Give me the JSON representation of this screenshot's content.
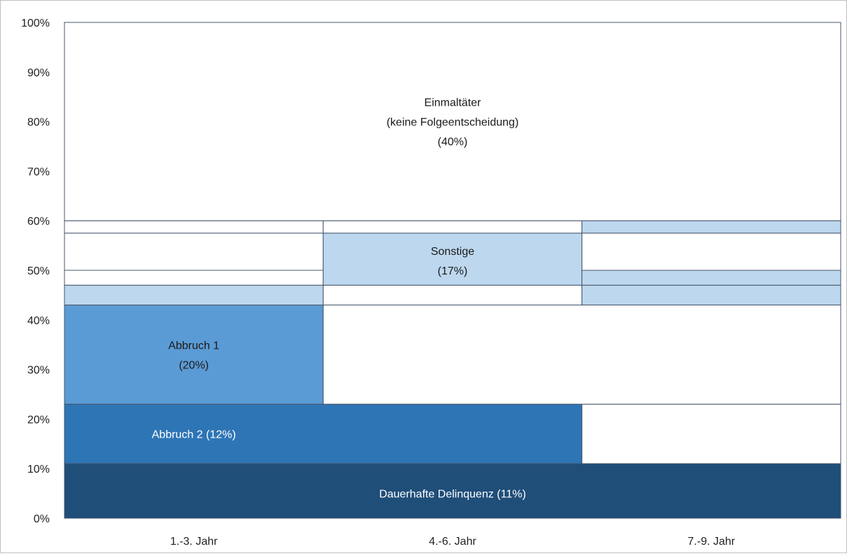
{
  "chart_data": {
    "type": "bar",
    "layout": "stacked-transition",
    "categories": [
      "1.-3. Jahr",
      "4.-6. Jahr",
      "7.-9. Jahr"
    ],
    "ylim": [
      0,
      100
    ],
    "yticks": [
      0,
      10,
      20,
      30,
      40,
      50,
      60,
      70,
      80,
      90,
      100
    ],
    "ytick_labels": [
      "0%",
      "10%",
      "20%",
      "30%",
      "40%",
      "50%",
      "60%",
      "70%",
      "80%",
      "90%",
      "100%"
    ],
    "grid": false,
    "legend": "none",
    "colors": {
      "dauerhafte": "#1f4e79",
      "abbruch2": "#2e75b6",
      "abbruch1": "#5b9bd5",
      "sonstige": "#bdd7ee",
      "empty": "#ffffff",
      "line": "#44546a",
      "label_light": "#ffffff",
      "label_dark": "#1a1a1a"
    },
    "segments": [
      {
        "col_start": 0,
        "col_end": 3,
        "y0": 0,
        "y1": 11,
        "color": "dauerhafte"
      },
      {
        "col_start": 0,
        "col_end": 2,
        "y0": 11,
        "y1": 23,
        "color": "abbruch2"
      },
      {
        "col_start": 2,
        "col_end": 3,
        "y0": 11,
        "y1": 23,
        "color": "empty"
      },
      {
        "col_start": 0,
        "col_end": 1,
        "y0": 23,
        "y1": 43,
        "color": "abbruch1"
      },
      {
        "col_start": 1,
        "col_end": 3,
        "y0": 23,
        "y1": 43,
        "color": "empty"
      },
      {
        "col_start": 0,
        "col_end": 1,
        "y0": 43,
        "y1": 47,
        "color": "sonstige"
      },
      {
        "col_start": 0,
        "col_end": 1,
        "y0": 47,
        "y1": 50,
        "color": "empty"
      },
      {
        "col_start": 0,
        "col_end": 1,
        "y0": 50,
        "y1": 57.5,
        "color": "empty"
      },
      {
        "col_start": 0,
        "col_end": 1,
        "y0": 57.5,
        "y1": 60,
        "color": "empty"
      },
      {
        "col_start": 1,
        "col_end": 2,
        "y0": 43,
        "y1": 47,
        "color": "empty"
      },
      {
        "col_start": 1,
        "col_end": 2,
        "y0": 47,
        "y1": 57.5,
        "color": "sonstige"
      },
      {
        "col_start": 1,
        "col_end": 2,
        "y0": 57.5,
        "y1": 60,
        "color": "empty"
      },
      {
        "col_start": 2,
        "col_end": 3,
        "y0": 43,
        "y1": 47,
        "color": "sonstige"
      },
      {
        "col_start": 2,
        "col_end": 3,
        "y0": 47,
        "y1": 50,
        "color": "sonstige"
      },
      {
        "col_start": 2,
        "col_end": 3,
        "y0": 50,
        "y1": 57.5,
        "color": "empty"
      },
      {
        "col_start": 2,
        "col_end": 3,
        "y0": 57.5,
        "y1": 60,
        "color": "sonstige"
      },
      {
        "col_start": 0,
        "col_end": 3,
        "y0": 60,
        "y1": 100,
        "color": "empty"
      }
    ],
    "labels": [
      {
        "lines": [
          "Einmaltäter",
          "(keine Folgeentscheidung)",
          "(40%)"
        ],
        "col": 1.5,
        "y": 80,
        "color": "label_dark"
      },
      {
        "lines": [
          "Sonstige",
          "(17%)"
        ],
        "col": 1.5,
        "y": 52,
        "color": "label_dark"
      },
      {
        "lines": [
          "Abbruch 1",
          "(20%)"
        ],
        "col": 0.5,
        "y": 33,
        "color": "label_dark"
      },
      {
        "lines": [
          "Abbruch 2 (12%)"
        ],
        "col": 0.5,
        "y": 17,
        "color": "label_light"
      },
      {
        "lines": [
          "Dauerhafte Delinquenz (11%)"
        ],
        "col": 1.5,
        "y": 5,
        "color": "label_light"
      }
    ]
  }
}
